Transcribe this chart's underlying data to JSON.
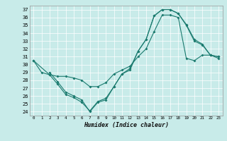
{
  "xlabel": "Humidex (Indice chaleur)",
  "bg_color": "#c8ebe9",
  "line_color": "#1a7a6e",
  "xlim": [
    -0.5,
    23.5
  ],
  "ylim": [
    23.5,
    37.5
  ],
  "yticks": [
    24,
    25,
    26,
    27,
    28,
    29,
    30,
    31,
    32,
    33,
    34,
    35,
    36,
    37
  ],
  "xticks": [
    0,
    1,
    2,
    3,
    4,
    5,
    6,
    7,
    8,
    9,
    10,
    11,
    12,
    13,
    14,
    15,
    16,
    17,
    18,
    19,
    20,
    21,
    22,
    23
  ],
  "line1_x": [
    0,
    1,
    2,
    3,
    4,
    5,
    6,
    7,
    8,
    9,
    10,
    11,
    12,
    13,
    14,
    15,
    16,
    17,
    18,
    19,
    20,
    21,
    22,
    23
  ],
  "line1_y": [
    30.5,
    29.0,
    28.7,
    28.5,
    28.5,
    28.3,
    28.0,
    27.2,
    27.2,
    27.7,
    28.8,
    29.3,
    29.8,
    31.0,
    32.0,
    34.2,
    36.3,
    36.3,
    36.0,
    30.8,
    30.5,
    31.2,
    31.2,
    30.8
  ],
  "line2_x": [
    0,
    2,
    3,
    4,
    5,
    6,
    7,
    8,
    9,
    10,
    11,
    12,
    13,
    14,
    15,
    16,
    17,
    18,
    19,
    20,
    21,
    22,
    23
  ],
  "line2_y": [
    30.5,
    28.7,
    27.5,
    26.2,
    25.8,
    25.2,
    24.1,
    25.3,
    25.7,
    27.2,
    28.8,
    29.3,
    31.7,
    33.2,
    36.2,
    37.0,
    37.0,
    36.5,
    35.1,
    33.2,
    32.6,
    31.2,
    31.0
  ],
  "line3_x": [
    2,
    3,
    4,
    5,
    6,
    7,
    8,
    9,
    10,
    11,
    12,
    13,
    14,
    15,
    16,
    17,
    18,
    19,
    20,
    21,
    22,
    23
  ],
  "line3_y": [
    29.0,
    27.8,
    26.5,
    26.0,
    25.5,
    24.0,
    25.2,
    25.5,
    27.2,
    28.8,
    29.5,
    31.7,
    33.2,
    36.2,
    37.0,
    37.0,
    36.5,
    35.0,
    33.0,
    32.5,
    31.2,
    31.0
  ]
}
